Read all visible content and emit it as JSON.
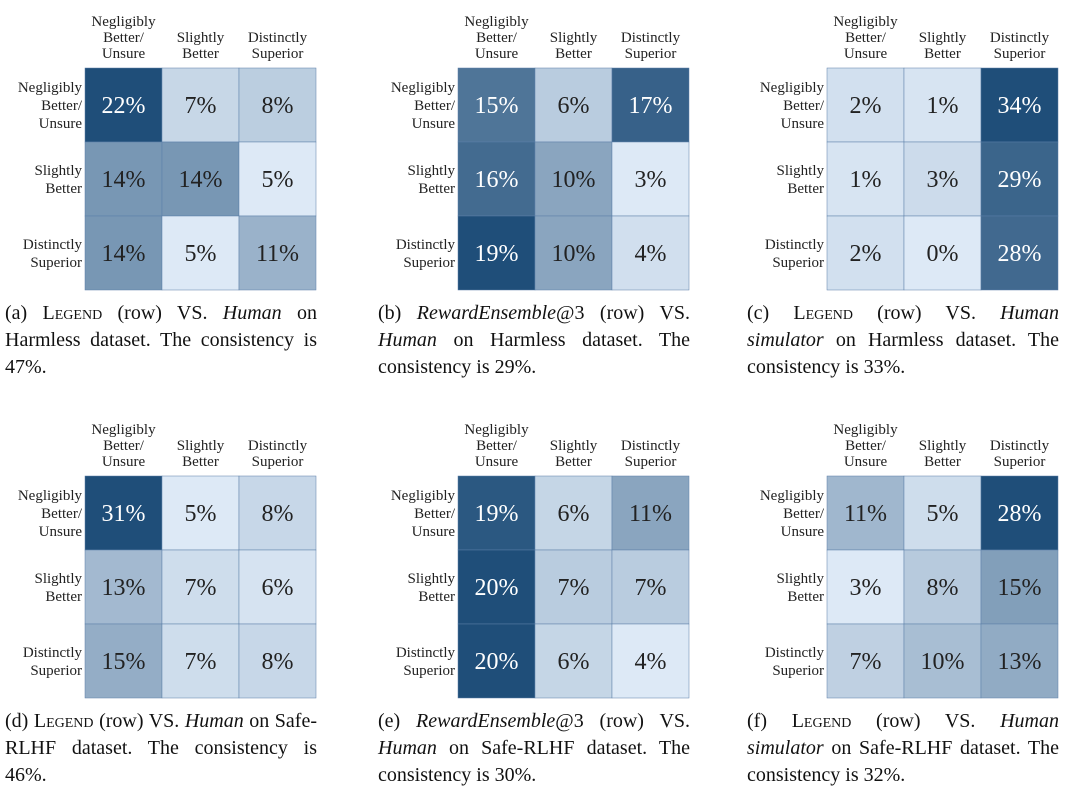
{
  "chart_data": [
    {
      "type": "heatmap",
      "rows": [
        "Negligibly Better/ Unsure",
        "Slightly Better",
        "Distinctly Superior"
      ],
      "columns": [
        "Negligibly Better/ Unsure",
        "Slightly Better",
        "Distinctly Superior"
      ],
      "values": [
        [
          22,
          7,
          8
        ],
        [
          14,
          14,
          5
        ],
        [
          14,
          5,
          11
        ]
      ],
      "value_labels": [
        [
          "22%",
          "7%",
          "8%"
        ],
        [
          "14%",
          "14%",
          "5%"
        ],
        [
          "14%",
          "5%",
          "11%"
        ]
      ],
      "colors": [
        "#dde9f6",
        "#1f4e79"
      ],
      "caption": [
        {
          "text": "(a) "
        },
        {
          "text": "Legend",
          "style": "smallcaps"
        },
        {
          "text": " (row) VS. "
        },
        {
          "text": "Human",
          "style": "italic"
        },
        {
          "text": " on Harmless dataset. The consistency is 47%."
        }
      ]
    },
    {
      "type": "heatmap",
      "rows": [
        "Negligibly Better/ Unsure",
        "Slightly Better",
        "Distinctly Superior"
      ],
      "columns": [
        "Negligibly Better/ Unsure",
        "Slightly Better",
        "Distinctly Superior"
      ],
      "values": [
        [
          15,
          6,
          17
        ],
        [
          16,
          10,
          3
        ],
        [
          19,
          10,
          4
        ]
      ],
      "value_labels": [
        [
          "15%",
          "6%",
          "17%"
        ],
        [
          "16%",
          "10%",
          "3%"
        ],
        [
          "19%",
          "10%",
          "4%"
        ]
      ],
      "colors": [
        "#dde9f6",
        "#1f4e79"
      ],
      "caption": [
        {
          "text": "(b) "
        },
        {
          "text": "RewardEnsemble",
          "style": "italic"
        },
        {
          "text": "@3 (row) VS. "
        },
        {
          "text": "Human",
          "style": "italic"
        },
        {
          "text": " on Harmless dataset. The consistency is 29%."
        }
      ]
    },
    {
      "type": "heatmap",
      "rows": [
        "Negligibly Better/ Unsure",
        "Slightly Better",
        "Distinctly Superior"
      ],
      "columns": [
        "Negligibly Better/ Unsure",
        "Slightly Better",
        "Distinctly Superior"
      ],
      "values": [
        [
          2,
          1,
          34
        ],
        [
          1,
          3,
          29
        ],
        [
          2,
          0,
          28
        ]
      ],
      "value_labels": [
        [
          "2%",
          "1%",
          "34%"
        ],
        [
          "1%",
          "3%",
          "29%"
        ],
        [
          "2%",
          "0%",
          "28%"
        ]
      ],
      "colors": [
        "#dde9f6",
        "#1f4e79"
      ],
      "caption": [
        {
          "text": "(c) "
        },
        {
          "text": "Legend",
          "style": "smallcaps"
        },
        {
          "text": " (row) VS. "
        },
        {
          "text": "Human simulator",
          "style": "italic"
        },
        {
          "text": " on Harmless dataset. The consistency is 33%."
        }
      ]
    },
    {
      "type": "heatmap",
      "rows": [
        "Negligibly Better/ Unsure",
        "Slightly Better",
        "Distinctly Superior"
      ],
      "columns": [
        "Negligibly Better/ Unsure",
        "Slightly Better",
        "Distinctly Superior"
      ],
      "values": [
        [
          31,
          5,
          8
        ],
        [
          13,
          7,
          6
        ],
        [
          15,
          7,
          8
        ]
      ],
      "value_labels": [
        [
          "31%",
          "5%",
          "8%"
        ],
        [
          "13%",
          "7%",
          "6%"
        ],
        [
          "15%",
          "7%",
          "8%"
        ]
      ],
      "colors": [
        "#dde9f6",
        "#1f4e79"
      ],
      "caption": [
        {
          "text": "(d) "
        },
        {
          "text": "Legend",
          "style": "smallcaps"
        },
        {
          "text": " (row) VS. "
        },
        {
          "text": "Human",
          "style": "italic"
        },
        {
          "text": " on Safe-RLHF dataset. The consistency is 46%."
        }
      ]
    },
    {
      "type": "heatmap",
      "rows": [
        "Negligibly Better/ Unsure",
        "Slightly Better",
        "Distinctly Superior"
      ],
      "columns": [
        "Negligibly Better/ Unsure",
        "Slightly Better",
        "Distinctly Superior"
      ],
      "values": [
        [
          19,
          6,
          11
        ],
        [
          20,
          7,
          7
        ],
        [
          20,
          6,
          4
        ]
      ],
      "value_labels": [
        [
          "19%",
          "6%",
          "11%"
        ],
        [
          "20%",
          "7%",
          "7%"
        ],
        [
          "20%",
          "6%",
          "4%"
        ]
      ],
      "colors": [
        "#dde9f6",
        "#1f4e79"
      ],
      "caption": [
        {
          "text": "(e) "
        },
        {
          "text": "RewardEnsemble",
          "style": "italic"
        },
        {
          "text": "@3 (row) VS. "
        },
        {
          "text": "Human",
          "style": "italic"
        },
        {
          "text": " on Safe-RLHF dataset. The consistency is 30%."
        }
      ]
    },
    {
      "type": "heatmap",
      "rows": [
        "Negligibly Better/ Unsure",
        "Slightly Better",
        "Distinctly Superior"
      ],
      "columns": [
        "Negligibly Better/ Unsure",
        "Slightly Better",
        "Distinctly Superior"
      ],
      "values": [
        [
          11,
          5,
          28
        ],
        [
          3,
          8,
          15
        ],
        [
          7,
          10,
          13
        ]
      ],
      "value_labels": [
        [
          "11%",
          "5%",
          "28%"
        ],
        [
          "3%",
          "8%",
          "15%"
        ],
        [
          "7%",
          "10%",
          "13%"
        ]
      ],
      "colors": [
        "#dde9f6",
        "#1f4e79"
      ],
      "caption": [
        {
          "text": "(f) "
        },
        {
          "text": "Legend",
          "style": "smallcaps"
        },
        {
          "text": " (row) VS. "
        },
        {
          "text": "Human simulator",
          "style": "italic"
        },
        {
          "text": " on Safe-RLHF dataset. The consistency is 32%."
        }
      ]
    }
  ]
}
